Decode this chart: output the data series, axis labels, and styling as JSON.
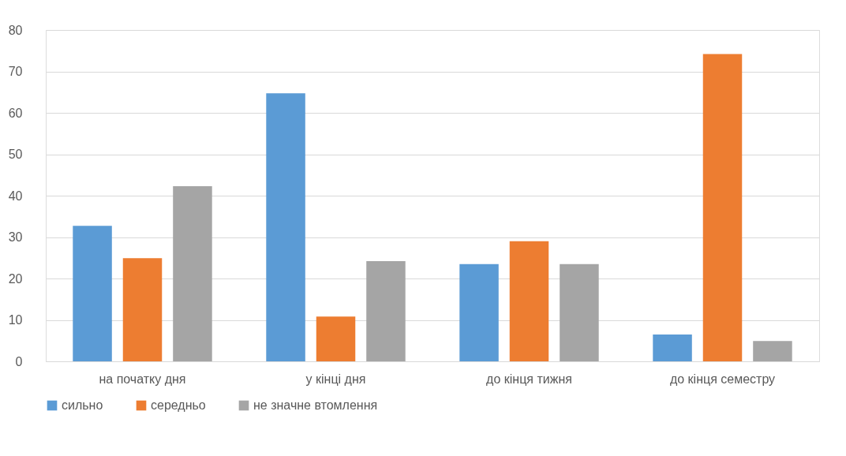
{
  "chart_data": {
    "type": "bar",
    "categories": [
      "на початку дня",
      "у кінці дня",
      "до кінця тижня",
      "до кінця семестру"
    ],
    "series": [
      {
        "name": "сильно",
        "color": "#5b9bd5",
        "values": [
          32.7,
          64.7,
          23.5,
          6.5
        ]
      },
      {
        "name": "середньо",
        "color": "#ed7d31",
        "values": [
          24.9,
          10.8,
          29.0,
          74.2
        ]
      },
      {
        "name": "не значне втомлення",
        "color": "#a5a5a5",
        "values": [
          42.3,
          24.2,
          23.5,
          4.9
        ]
      }
    ],
    "ylim": [
      0,
      80
    ],
    "yticks": [
      0,
      10,
      20,
      30,
      40,
      50,
      60,
      70,
      80
    ],
    "grid": "y",
    "legend": "bottom"
  }
}
